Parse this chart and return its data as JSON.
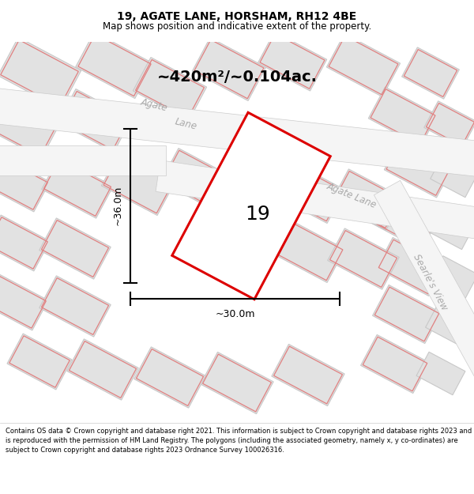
{
  "title": "19, AGATE LANE, HORSHAM, RH12 4BE",
  "subtitle": "Map shows position and indicative extent of the property.",
  "footer": "Contains OS data © Crown copyright and database right 2021. This information is subject to Crown copyright and database rights 2023 and is reproduced with the permission of HM Land Registry. The polygons (including the associated geometry, namely x, y co-ordinates) are subject to Crown copyright and database rights 2023 Ordnance Survey 100026316.",
  "area_label": "~420m²/~0.104ac.",
  "plot_number": "19",
  "width_label": "~30.0m",
  "height_label": "~36.0m",
  "plot_color": "#dd0000",
  "map_bg": "#efefef",
  "block_fill": "#e2e2e2",
  "block_edge": "#c8c8c8",
  "pink_edge": "#e08080",
  "street_fill": "#f5f5f5",
  "road_label_color": "#aaaaaa",
  "title_fontsize": 10,
  "subtitle_fontsize": 8.5,
  "footer_fontsize": 6.0
}
